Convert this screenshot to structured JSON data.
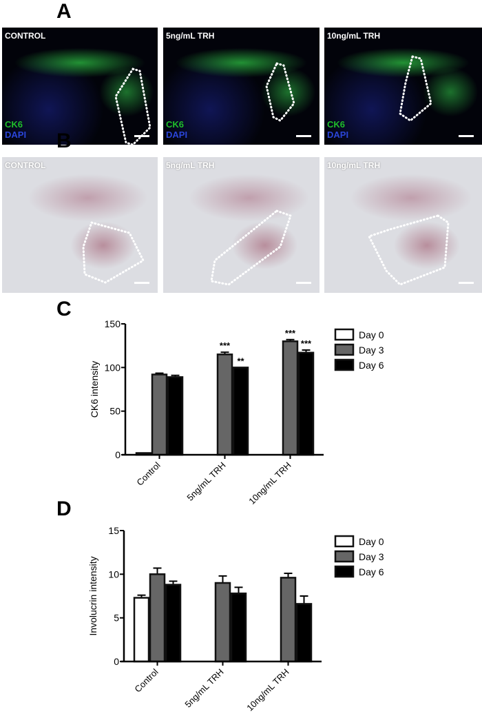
{
  "panels": {
    "A": "A",
    "B": "B",
    "C": "C",
    "D": "D"
  },
  "panel_a": {
    "images": [
      {
        "caption": "CONTROL",
        "stain1": "CK6",
        "stain2": "DAPI"
      },
      {
        "caption": "5ng/mL TRH",
        "stain1": "CK6",
        "stain2": "DAPI"
      },
      {
        "caption": "10ng/mL TRH",
        "stain1": "CK6",
        "stain2": "DAPI"
      }
    ],
    "colors": {
      "ck6": "#1fbf2a",
      "dapi": "#2a45d8"
    }
  },
  "panel_b": {
    "images": [
      {
        "caption": "CONTROL"
      },
      {
        "caption": "5ng/mL TRH"
      },
      {
        "caption": "10ng/mL TRH"
      }
    ]
  },
  "chart_data": [
    {
      "type": "bar",
      "ylabel": "CK6 intensity",
      "ylim": [
        0,
        150
      ],
      "yticks": [
        "0",
        "50",
        "100",
        "150"
      ],
      "categories": [
        "Control",
        "5ng/mL TRH",
        "10ng/mL TRH"
      ],
      "legend_position": "right",
      "series": [
        {
          "name": "Day 0",
          "color": "#ffffff",
          "values": [
            2,
            null,
            null
          ],
          "errors": [
            0,
            null,
            null
          ]
        },
        {
          "name": "Day 3",
          "color": "#666666",
          "values": [
            92,
            115,
            130
          ],
          "errors": [
            1.5,
            2.5,
            2
          ]
        },
        {
          "name": "Day 6",
          "color": "#000000",
          "values": [
            89,
            100,
            117
          ],
          "errors": [
            2,
            0,
            3
          ]
        }
      ],
      "annotations": [
        {
          "category": "5ng/mL TRH",
          "series": "Day 3",
          "text": "***"
        },
        {
          "category": "5ng/mL TRH",
          "series": "Day 6",
          "text": "**"
        },
        {
          "category": "10ng/mL TRH",
          "series": "Day 3",
          "text": "***"
        },
        {
          "category": "10ng/mL TRH",
          "series": "Day 6",
          "text": "***"
        }
      ]
    },
    {
      "type": "bar",
      "ylabel": "Involucrin intensity",
      "ylim": [
        0,
        15
      ],
      "yticks": [
        "0",
        "5",
        "10",
        "15"
      ],
      "categories": [
        "Control",
        "5ng/mL TRH",
        "10ng/mL TRH"
      ],
      "legend_position": "right",
      "series": [
        {
          "name": "Day 0",
          "color": "#ffffff",
          "values": [
            7.3,
            null,
            null
          ],
          "errors": [
            0.3,
            null,
            null
          ]
        },
        {
          "name": "Day 3",
          "color": "#666666",
          "values": [
            10,
            9,
            9.6
          ],
          "errors": [
            0.7,
            0.8,
            0.5
          ]
        },
        {
          "name": "Day 6",
          "color": "#000000",
          "values": [
            8.8,
            7.8,
            6.6
          ],
          "errors": [
            0.4,
            0.7,
            0.9
          ]
        }
      ],
      "annotations": []
    }
  ]
}
